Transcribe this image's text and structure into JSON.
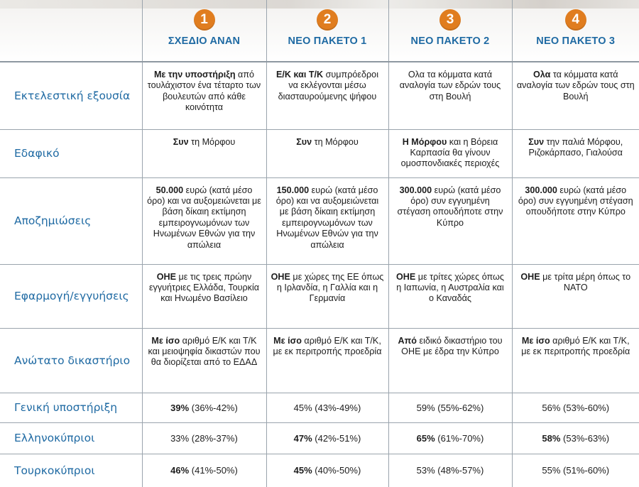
{
  "columns": [
    {
      "number": "1",
      "title": "ΣΧΕΔΙΟ ΑΝΑΝ"
    },
    {
      "number": "2",
      "title": "ΝΕΟ ΠΑΚΕΤΟ 1"
    },
    {
      "number": "3",
      "title": "ΝΕΟ ΠΑΚΕΤΟ 2"
    },
    {
      "number": "4",
      "title": "ΝΕΟ ΠΑΚΕΤΟ 3"
    }
  ],
  "rows": [
    {
      "label": "Εκτελεστική εξουσία",
      "cells": [
        {
          "bold": "Με την υποστήριξη",
          "rest": " από τουλάχιστον ένα τέταρτο των βουλευτών από κάθε κοινότητα"
        },
        {
          "bold": "Ε/Κ και Τ/Κ",
          "rest": " συμπρόεδροι να εκλέγονται μέσω διασταυρούμενης ψήφου"
        },
        {
          "bold": "",
          "rest": "Ολα τα κόμματα κατά αναλογία των εδρών τους στη Βουλή"
        },
        {
          "bold": "Ολα",
          "rest": " τα κόμματα κατά αναλογία των εδρών τους στη Βουλή"
        }
      ]
    },
    {
      "label": "Εδαφικό",
      "cells": [
        {
          "bold": "Συν",
          "rest": " τη Μόρφου"
        },
        {
          "bold": "Συν",
          "rest": " τη Μόρφου"
        },
        {
          "bold": "Η Μόρφου",
          "rest": " και η Βόρεια Καρπασία θα γίνουν ομοσπονδιακές περιοχές"
        },
        {
          "bold": "Συν",
          "rest": " την παλιά Μόρφου, Ριζοκάρπασο, Γιαλούσα"
        }
      ]
    },
    {
      "label": "Αποζημιώσεις",
      "cells": [
        {
          "bold": "50.000",
          "rest": " ευρώ (κατά μέσο όρο) και να αυξομειώνεται με βάση δίκαιη εκτίμηση εμπειρογνωμόνων των Ηνωμένων Εθνών για την απώλεια"
        },
        {
          "bold": "150.000",
          "rest": " ευρώ (κατά μέσο όρο) και να αυξομειώνεται με βάση δίκαιη εκτίμηση εμπειρογνωμόνων των Ηνωμένων Εθνών για την απώλεια"
        },
        {
          "bold": "300.000",
          "rest": " ευρώ (κατά μέσο όρο) συν εγγυημένη στέγαση οπουδήποτε στην Κύπρο"
        },
        {
          "bold": "300.000",
          "rest": " ευρώ (κατά μέσο όρο) συν εγγυημένη στέγαση οπουδήποτε στην Κύπρο"
        }
      ]
    },
    {
      "label": "Εφαρμογή/εγγυήσεις",
      "cells": [
        {
          "bold": "ΟΗΕ",
          "rest": " με τις τρεις πρώην εγγυήτριες Ελλάδα, Τουρκία και Ηνωμένο Βασίλειο"
        },
        {
          "bold": "ΟΗΕ",
          "rest": " με χώρες της ΕΕ όπως η Ιρλανδία, η Γαλλία και η Γερμανία"
        },
        {
          "bold": "ΟΗΕ",
          "rest": " με τρίτες χώρες όπως η Ιαπωνία, η Αυστραλία και ο Καναδάς"
        },
        {
          "bold": "ΟΗΕ",
          "rest": " με τρίτα μέρη όπως το ΝΑΤΟ"
        }
      ]
    },
    {
      "label": "Ανώτατο δικαστήριο",
      "cells": [
        {
          "bold": "Με ίσο",
          "rest": " αριθμό Ε/Κ και Τ/Κ και μειοψηφία δικαστών που θα διορίζεται από το ΕΔΑΔ"
        },
        {
          "bold": "Με ίσο",
          "rest": " αριθμό Ε/Κ και Τ/Κ, με εκ περιτροπής προεδρία"
        },
        {
          "bold": "Από",
          "rest": " ειδικό δικαστήριο του ΟΗΕ με έδρα την Κύπρο"
        },
        {
          "bold": "Με ίσο",
          "rest": " αριθμό Ε/Κ και Τ/Κ, με εκ περιτροπής προεδρία"
        }
      ]
    }
  ],
  "stats": [
    {
      "label": "Γενική υποστήριξη",
      "cells": [
        {
          "main": "39%",
          "range": " (36%-42%)"
        },
        {
          "main": "45%",
          "range": " (43%-49%)"
        },
        {
          "main": "59%",
          "range": " (55%-62%)"
        },
        {
          "main": "56%",
          "range": " (53%-60%)"
        }
      ]
    },
    {
      "label": "Ελληνοκύπριοι",
      "cells": [
        {
          "main": "33%",
          "range": " (28%-37%)"
        },
        {
          "main": "47%",
          "range": " (42%-51%)"
        },
        {
          "main": "65%",
          "range": " (61%-70%)"
        },
        {
          "main": "58%",
          "range": " (53%-63%)"
        }
      ]
    },
    {
      "label": "Τουρκοκύπριοι",
      "cells": [
        {
          "main": "46%",
          "range": " (41%-50%)"
        },
        {
          "main": "45%",
          "range": " (40%-50%)"
        },
        {
          "main": "53%",
          "range": " (48%-57%)"
        },
        {
          "main": "55%",
          "range": " (51%-60%)"
        }
      ]
    }
  ],
  "colors": {
    "badge": "#e07d1f",
    "heading_blue": "#1f6aa3",
    "grid": "#9aa4ad"
  }
}
